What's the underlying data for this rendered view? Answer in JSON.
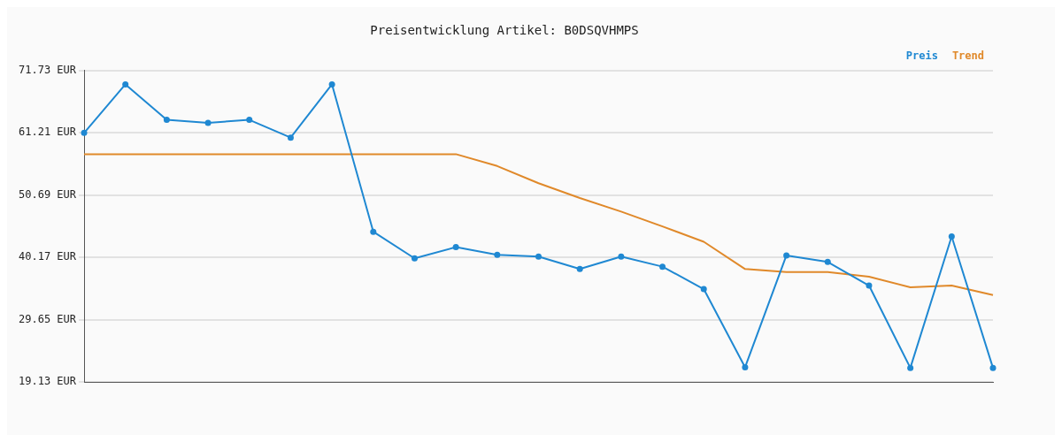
{
  "chart_data": {
    "type": "line",
    "title": "Preisentwicklung Artikel: B0DSQVHMPS",
    "categories": [
      null,
      null,
      null,
      null,
      null,
      null,
      null,
      null,
      null,
      null,
      null,
      null,
      null,
      null,
      null,
      null,
      null,
      null,
      null,
      null,
      null,
      null,
      null
    ],
    "series": [
      {
        "name": "Preis",
        "color": "#1f88d2",
        "marker": "circle",
        "values": [
          61.2,
          69.4,
          63.4,
          62.9,
          63.4,
          60.4,
          69.4,
          44.5,
          40.0,
          41.9,
          40.6,
          40.3,
          38.2,
          40.3,
          38.6,
          34.8,
          21.6,
          40.5,
          39.4,
          35.4,
          21.5,
          43.7,
          21.5
        ]
      },
      {
        "name": "Trend",
        "color": "#e0892a",
        "marker": "none",
        "values": [
          57.6,
          57.6,
          57.6,
          57.6,
          57.6,
          57.6,
          57.6,
          57.6,
          57.6,
          57.6,
          55.6,
          52.7,
          50.2,
          47.9,
          45.4,
          42.8,
          38.2,
          37.7,
          37.7,
          36.9,
          35.1,
          35.4,
          33.8
        ]
      }
    ],
    "ylim": [
      19.13,
      71.73
    ],
    "yticks": [
      {
        "value": 19.13,
        "label": "19.13 EUR"
      },
      {
        "value": 29.65,
        "label": "29.65 EUR"
      },
      {
        "value": 40.17,
        "label": "40.17 EUR"
      },
      {
        "value": 50.69,
        "label": "50.69 EUR"
      },
      {
        "value": 61.21,
        "label": "61.21 EUR"
      },
      {
        "value": 71.73,
        "label": "71.73 EUR"
      }
    ],
    "grid": "y",
    "legend": "top right",
    "line_style": "solid"
  }
}
